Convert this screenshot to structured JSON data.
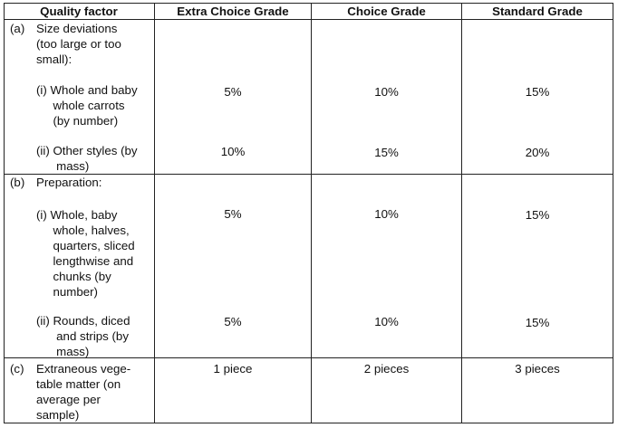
{
  "header": {
    "quality_factor": "Quality factor",
    "extra": "Extra Choice Grade",
    "choice": "Choice Grade",
    "standard": "Standard Grade"
  },
  "rows": {
    "a": {
      "label": "(a)",
      "text": "Size deviations\n(too large or too\nsmall):",
      "i": {
        "text": "(i) Whole and baby\n     whole carrots\n     (by number)",
        "extra": "5%",
        "choice": "10%",
        "standard": "15%"
      },
      "ii": {
        "text": "(ii) Other styles (by\n      mass)",
        "extra": "10%",
        "choice": "15%",
        "standard": "20%"
      }
    },
    "b": {
      "label": "(b)",
      "text": "Preparation:",
      "i": {
        "text": "(i) Whole, baby\n     whole, halves,\n     quarters, sliced\n     lengthwise and\n     chunks (by\n     number)",
        "extra": "5%",
        "choice": "10%",
        "standard": "15%"
      },
      "ii": {
        "text": "(ii) Rounds, diced\n      and strips (by\n      mass)",
        "extra": "5%",
        "choice": "10%",
        "standard": "15%"
      }
    },
    "c": {
      "label": "(c)",
      "text": "Extraneous vege-\ntable matter (on\naverage per\nsample)",
      "extra": "1 piece",
      "choice": "2 pieces",
      "standard": "3 pieces"
    }
  }
}
